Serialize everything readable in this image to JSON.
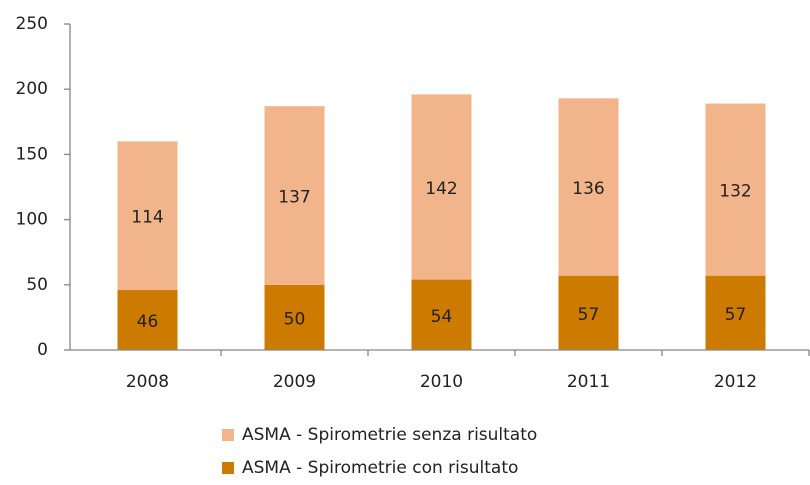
{
  "chart_data": {
    "type": "stacked_bar",
    "categories": [
      "2008",
      "2009",
      "2010",
      "2011",
      "2012"
    ],
    "series": [
      {
        "name": "ASMA - Spirometrie con risultato",
        "color": "#cc7a00",
        "values": [
          46,
          50,
          54,
          57,
          57
        ]
      },
      {
        "name": "ASMA - Spirometrie senza risultato",
        "color": "#f2b48a",
        "values": [
          114,
          137,
          142,
          136,
          132
        ]
      }
    ],
    "ylim": [
      0,
      250
    ],
    "yticks": [
      0,
      50,
      100,
      150,
      200,
      250
    ],
    "grid": false,
    "legend": "bottom"
  }
}
